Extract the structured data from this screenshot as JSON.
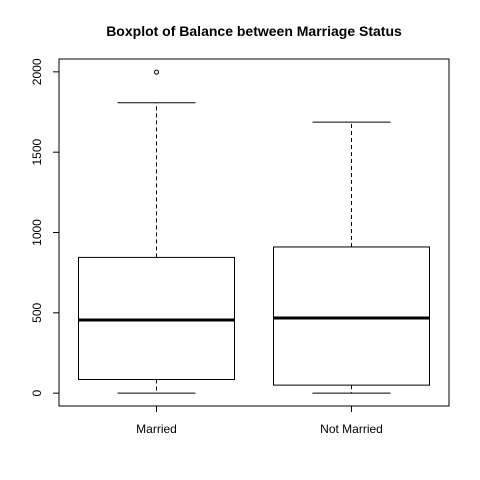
{
  "chart_data": {
    "type": "boxplot",
    "title": "Boxplot of Balance between Marriage Status",
    "xlabel": "",
    "ylabel": "",
    "categories": [
      "Married",
      "Not Married"
    ],
    "boxes": [
      {
        "category": "Married",
        "whisker_low": 0,
        "q1": 85,
        "median": 455,
        "q3": 845,
        "whisker_high": 1808,
        "outliers": [
          1998
        ]
      },
      {
        "category": "Not Married",
        "whisker_low": 0,
        "q1": 50,
        "median": 468,
        "q3": 910,
        "whisker_high": 1687,
        "outliers": []
      }
    ],
    "y_ticks": [
      0,
      500,
      1000,
      1500,
      2000
    ],
    "y_tick_labels": [
      "0",
      "500",
      "1000",
      "1500",
      "2000"
    ],
    "ylim": [
      -80,
      2080
    ],
    "grid": false,
    "legend": "none",
    "colors": {
      "box_stroke": "#000000",
      "box_fill": "#ffffff",
      "background": "#ffffff"
    }
  }
}
